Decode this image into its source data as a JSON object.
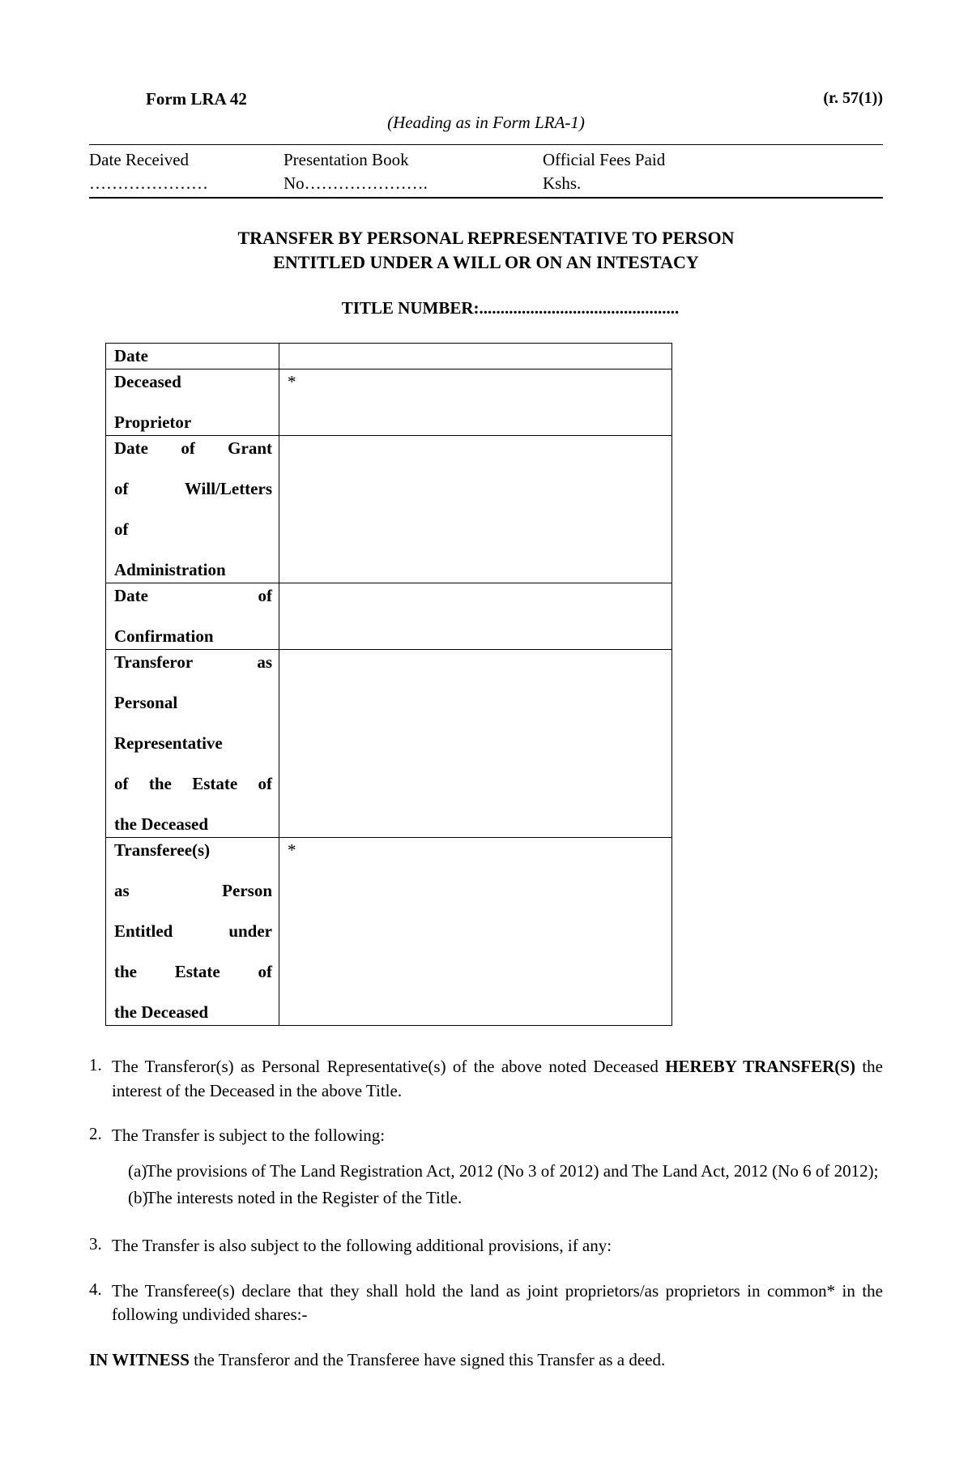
{
  "header": {
    "form_name": "Form LRA 42",
    "rule_ref": "(r. 57(1))",
    "heading_note": "(Heading as in Form LRA-1)"
  },
  "meta": {
    "date_received_label": "Date Received",
    "date_received_dots": "…………………",
    "presentation_label": "Presentation Book",
    "presentation_no": "No………………….",
    "fees_label": "Official Fees Paid",
    "fees_value": "Kshs."
  },
  "title": {
    "line1": "TRANSFER BY PERSONAL REPRESENTATIVE TO PERSON",
    "line2": "ENTITLED UNDER A WILL OR ON AN INTESTACY",
    "title_number_label": "TITLE NUMBER:",
    "title_number_dots": "..............................................."
  },
  "table": {
    "rows": [
      {
        "label_lines": [
          "Date"
        ],
        "value": ""
      },
      {
        "label_lines": [
          "Deceased",
          "Proprietor"
        ],
        "value": "*"
      },
      {
        "label_lines": [
          "Date of Grant",
          "of Will/Letters",
          "of",
          "Administration"
        ],
        "value": ""
      },
      {
        "label_lines": [
          "Date of",
          "Confirmation"
        ],
        "value": ""
      },
      {
        "label_lines": [
          "Transferor as",
          "Personal",
          "Representative",
          "of the Estate of",
          "the Deceased"
        ],
        "value": ""
      },
      {
        "label_lines": [
          "Transferee(s)",
          "as Person",
          "Entitled under",
          "the Estate of",
          "the Deceased"
        ],
        "value": "*"
      }
    ]
  },
  "clauses": {
    "c1_pre": "The Transferor(s) as Personal Representative(s) of the above noted Deceased ",
    "c1_bold": "HEREBY TRANSFER(S)",
    "c1_post": " the interest of the Deceased in the above Title.",
    "c2": "The Transfer is subject to the following:",
    "c2a": "The provisions of The Land Registration Act, 2012 (No 3 of 2012) and The Land Act, 2012 (No 6 of 2012);",
    "c2b": "The interests noted in the Register of the Title.",
    "c3": "The Transfer is also subject to the following additional provisions, if any:",
    "c4": "The Transferee(s) declare that they shall hold the land as joint proprietors/as proprietors in common* in the following undivided shares:-"
  },
  "witness": {
    "bold": "IN WITNESS",
    "text": " the Transferor and the Transferee have signed this Transfer as a deed."
  },
  "style": {
    "background": "#ffffff",
    "text_color": "#000000",
    "font_family": "Times New Roman",
    "base_font_size_pt": 16
  }
}
